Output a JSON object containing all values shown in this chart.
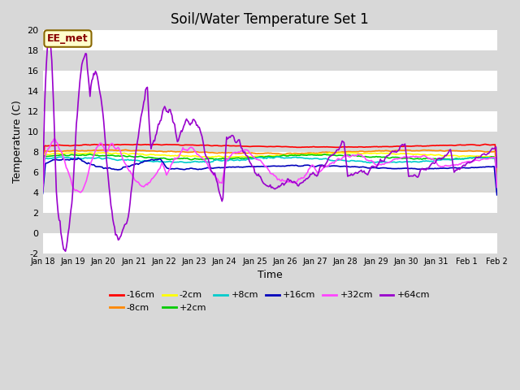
{
  "title": "Soil/Water Temperature Set 1",
  "xlabel": "Time",
  "ylabel": "Temperature (C)",
  "ylim": [
    -2,
    20
  ],
  "yticks": [
    -2,
    0,
    2,
    4,
    6,
    8,
    10,
    12,
    14,
    16,
    18,
    20
  ],
  "outer_bg": "#d8d8d8",
  "band_light": "#ffffff",
  "band_dark": "#d8d8d8",
  "annotation_text": "EE_met",
  "annotation_bg": "#ffffcc",
  "annotation_border": "#886600",
  "series": [
    {
      "label": "-16cm",
      "color": "#ff0000"
    },
    {
      "label": "-8cm",
      "color": "#ff8800"
    },
    {
      "label": "-2cm",
      "color": "#ffff00"
    },
    {
      "label": "+2cm",
      "color": "#00cc00"
    },
    {
      "label": "+8cm",
      "color": "#00cccc"
    },
    {
      "label": "+16cm",
      "color": "#0000bb"
    },
    {
      "label": "+32cm",
      "color": "#ff44ff"
    },
    {
      "label": "+64cm",
      "color": "#9900cc"
    }
  ],
  "xtick_labels": [
    "Jan 18",
    "Jan 19",
    "Jan 20",
    "Jan 21",
    "Jan 22",
    "Jan 23",
    "Jan 24",
    "Jan 25",
    "Jan 26",
    "Jan 27",
    "Jan 28",
    "Jan 29",
    "Jan 30",
    "Jan 31",
    "Feb 1",
    "Feb 2"
  ],
  "title_fontsize": 12
}
